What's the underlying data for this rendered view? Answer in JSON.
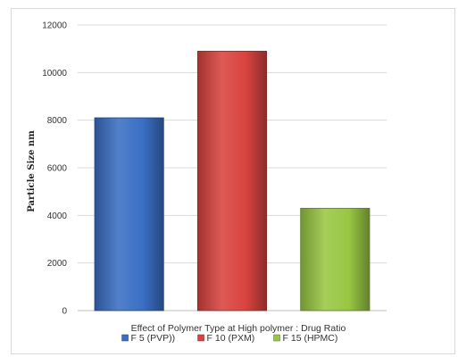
{
  "chart_data": {
    "type": "bar",
    "title": "",
    "xlabel": "Effect of Polymer Type at High polymer : Drug Ratio",
    "ylabel": "Particle Size nm",
    "ylim": [
      0,
      12000
    ],
    "yticks": [
      0,
      2000,
      4000,
      6000,
      8000,
      10000,
      12000
    ],
    "grid": true,
    "legend_position": "bottom",
    "series": [
      {
        "name": "F 5 (PVP))",
        "value": 8100,
        "color": "#3a6fc4"
      },
      {
        "name": "F 10 (PXM)",
        "value": 10900,
        "color": "#d9433f"
      },
      {
        "name": "F 15 (HPMC)",
        "value": 4300,
        "color": "#98c743"
      }
    ]
  }
}
